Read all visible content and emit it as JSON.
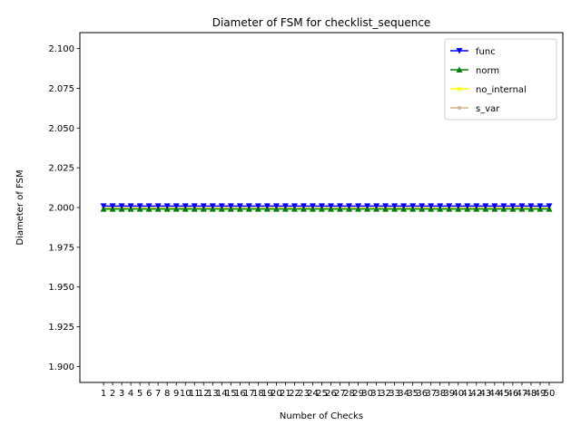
{
  "chart_data": {
    "type": "line",
    "title": "Diameter of FSM for checklist_sequence",
    "xlabel": "Number of Checks",
    "ylabel": "Diameter of FSM",
    "x": [
      1,
      2,
      3,
      4,
      5,
      6,
      7,
      8,
      9,
      10,
      11,
      12,
      13,
      14,
      15,
      16,
      17,
      18,
      19,
      20,
      21,
      22,
      23,
      24,
      25,
      26,
      27,
      28,
      29,
      30,
      31,
      32,
      33,
      34,
      35,
      36,
      37,
      38,
      39,
      40,
      41,
      42,
      43,
      44,
      45,
      46,
      47,
      48,
      49,
      50
    ],
    "xticks": [
      "1",
      "2",
      "3",
      "4",
      "5",
      "6",
      "7",
      "8",
      "9",
      "10",
      "11",
      "12",
      "13",
      "14",
      "15",
      "16",
      "17",
      "18",
      "19",
      "20",
      "21",
      "22",
      "23",
      "24",
      "25",
      "26",
      "27",
      "28",
      "29",
      "30",
      "31",
      "32",
      "33",
      "34",
      "35",
      "36",
      "37",
      "38",
      "39",
      "40",
      "41",
      "42",
      "43",
      "44",
      "45",
      "46",
      "47",
      "48",
      "49",
      "50"
    ],
    "ylim": [
      1.89,
      2.11
    ],
    "yticks": [
      "1.900",
      "1.925",
      "1.950",
      "1.975",
      "2.000",
      "2.025",
      "2.050",
      "2.075",
      "2.100"
    ],
    "grid": false,
    "legend_position": "top-right",
    "series": [
      {
        "name": "func",
        "color": "#0000ff",
        "marker": "triangle-down",
        "values": [
          2,
          2,
          2,
          2,
          2,
          2,
          2,
          2,
          2,
          2,
          2,
          2,
          2,
          2,
          2,
          2,
          2,
          2,
          2,
          2,
          2,
          2,
          2,
          2,
          2,
          2,
          2,
          2,
          2,
          2,
          2,
          2,
          2,
          2,
          2,
          2,
          2,
          2,
          2,
          2,
          2,
          2,
          2,
          2,
          2,
          2,
          2,
          2,
          2,
          2
        ]
      },
      {
        "name": "norm",
        "color": "#008000",
        "marker": "triangle-up",
        "values": [
          2,
          2,
          2,
          2,
          2,
          2,
          2,
          2,
          2,
          2,
          2,
          2,
          2,
          2,
          2,
          2,
          2,
          2,
          2,
          2,
          2,
          2,
          2,
          2,
          2,
          2,
          2,
          2,
          2,
          2,
          2,
          2,
          2,
          2,
          2,
          2,
          2,
          2,
          2,
          2,
          2,
          2,
          2,
          2,
          2,
          2,
          2,
          2,
          2,
          2
        ]
      },
      {
        "name": "no_internal",
        "color": "#ffff00",
        "marker": "star",
        "values": [
          2,
          2,
          2,
          2,
          2,
          2,
          2,
          2,
          2,
          2,
          2,
          2,
          2,
          2,
          2,
          2,
          2,
          2,
          2,
          2,
          2,
          2,
          2,
          2,
          2,
          2,
          2,
          2,
          2,
          2,
          2,
          2,
          2,
          2,
          2,
          2,
          2,
          2,
          2,
          2,
          2,
          2,
          2,
          2,
          2,
          2,
          2,
          2,
          2,
          2
        ]
      },
      {
        "name": "s_var",
        "color": "#d2b48c",
        "marker": "point",
        "values": [
          2,
          2,
          2,
          2,
          2,
          2,
          2,
          2,
          2,
          2,
          2,
          2,
          2,
          2,
          2,
          2,
          2,
          2,
          2,
          2,
          2,
          2,
          2,
          2,
          2,
          2,
          2,
          2,
          2,
          2,
          2,
          2,
          2,
          2,
          2,
          2,
          2,
          2,
          2,
          2,
          2,
          2,
          2,
          2,
          2,
          2,
          2,
          2,
          2,
          2
        ]
      }
    ]
  }
}
